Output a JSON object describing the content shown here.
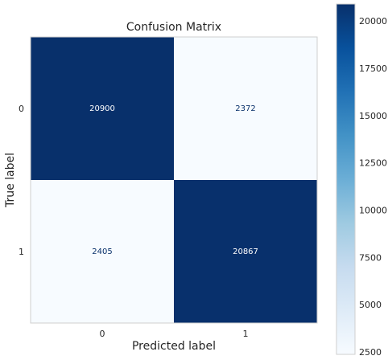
{
  "chart_data": {
    "type": "heatmap",
    "title": "Confusion Matrix",
    "xlabel": "Predicted label",
    "ylabel": "True label",
    "x_categories": [
      "0",
      "1"
    ],
    "y_categories": [
      "0",
      "1"
    ],
    "values": [
      [
        20900,
        2372
      ],
      [
        2405,
        20867
      ]
    ],
    "colorscale": "Blues",
    "colorbar": {
      "range": [
        2372,
        20900
      ],
      "ticks": [
        2500,
        5000,
        7500,
        10000,
        12500,
        15000,
        17500,
        20000
      ]
    },
    "grid": false
  }
}
